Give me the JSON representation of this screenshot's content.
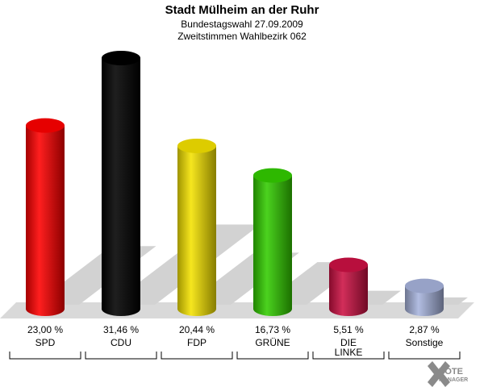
{
  "chart_data": {
    "type": "bar",
    "title": "Stadt Mülheim an der Ruhr",
    "subtitle_1": "Bundestagswahl 27.09.2009",
    "subtitle_2": "Zweitstimmen Wahlbezirk 062",
    "categories": [
      "SPD",
      "CDU",
      "FDP",
      "GRÜNE",
      "DIE LINKE",
      "Sonstige"
    ],
    "category_lines": [
      [
        "SPD"
      ],
      [
        "CDU"
      ],
      [
        "FDP"
      ],
      [
        "GRÜNE"
      ],
      [
        "DIE",
        "LINKE"
      ],
      [
        "Sonstige"
      ]
    ],
    "values": [
      23.0,
      31.46,
      20.44,
      16.73,
      5.51,
      2.87
    ],
    "value_labels": [
      "23,00 %",
      "31,46 %",
      "20,44 %",
      "16,73 %",
      "5,51 %",
      "2,87 %"
    ],
    "colors": [
      "#ff0000",
      "#000000",
      "#f5e300",
      "#33cc00",
      "#cc1144",
      "#a8b4dd"
    ],
    "ylim": [
      0,
      31.46
    ],
    "grid": false,
    "legend": "none"
  },
  "logo": {
    "text_1": "VOTE",
    "text_2": "MANAGER"
  }
}
